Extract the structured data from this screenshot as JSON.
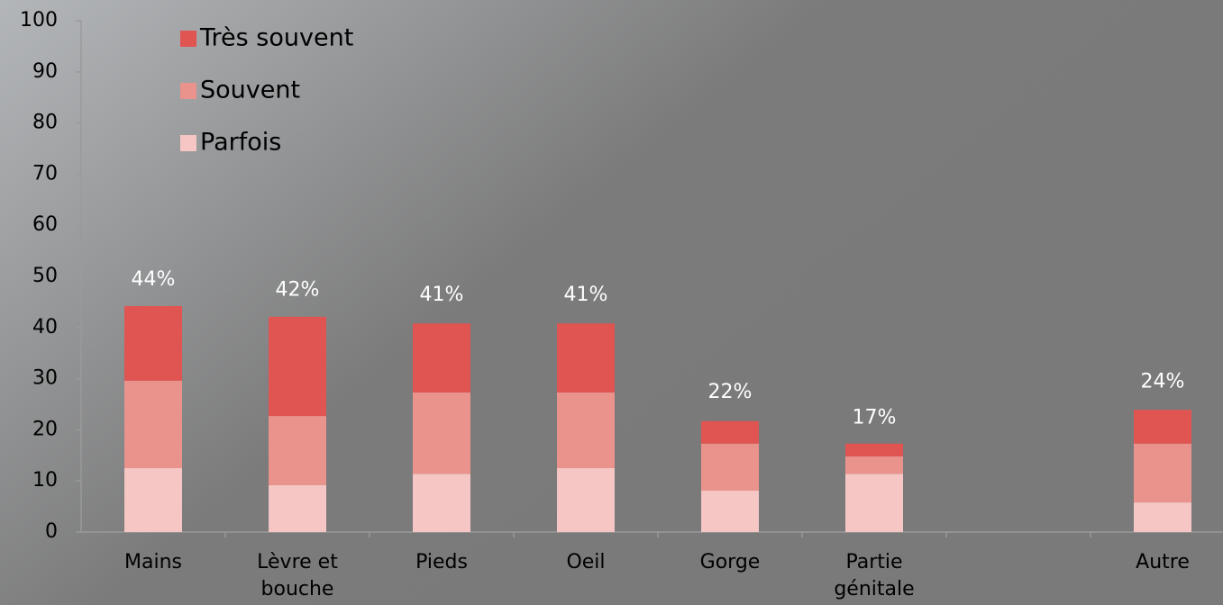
{
  "chart_data": {
    "type": "stacked_bar",
    "categories": [
      "Mains",
      "Lèvre et\nbouche",
      "Pieds",
      "Oeil",
      "Gorge",
      "Partie\ngénitale",
      null,
      "Autre"
    ],
    "series": [
      {
        "name": "Parfois",
        "color": "#f5c6c4",
        "values": [
          12.5,
          9.2,
          11.4,
          12.5,
          8.1,
          11.4,
          null,
          5.8
        ]
      },
      {
        "name": "Souvent",
        "color": "#ea928c",
        "values": [
          17.1,
          13.5,
          15.9,
          14.8,
          9.2,
          3.4,
          null,
          11.5
        ]
      },
      {
        "name": "Très souvent",
        "color": "#e05552",
        "values": [
          14.6,
          19.4,
          13.5,
          13.5,
          4.4,
          2.5,
          null,
          6.6
        ]
      }
    ],
    "totals": [
      44,
      42,
      41,
      41,
      22,
      17,
      null,
      24
    ],
    "total_labels": [
      "44%",
      "42%",
      "41%",
      "41%",
      "22%",
      "17%",
      null,
      "24%"
    ],
    "ylim": [
      0,
      100
    ],
    "yticks": [
      0,
      10,
      20,
      30,
      40,
      50,
      60,
      70,
      80,
      90,
      100
    ],
    "legend": "upper left"
  }
}
